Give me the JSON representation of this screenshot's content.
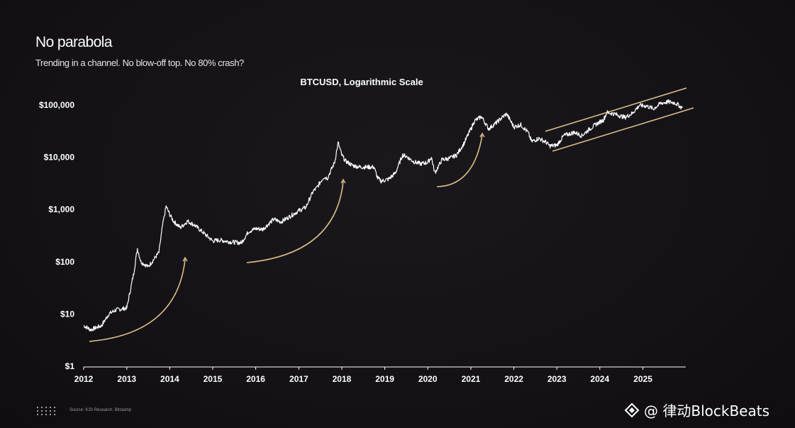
{
  "header": {
    "title": "No parabola",
    "subtitle": "Trending in a channel. No blow-off top. No 80% crash?"
  },
  "footer": {
    "source": "Source: K33 Research, Bitstamp",
    "watermark": "@ 律动BlockBeats"
  },
  "colors": {
    "background": "#141216",
    "price_line": "#ffffff",
    "annotation": "#d9bf86"
  },
  "chart_data": {
    "type": "line",
    "title": "BTCUSD, Logarithmic Scale",
    "xlabel": "",
    "ylabel": "",
    "y_scale": "log",
    "ylim": [
      1,
      200000
    ],
    "xlim": [
      "2012-01-01",
      "2025-12-31"
    ],
    "grid": false,
    "y_ticks": [
      {
        "value": 1,
        "label": "$1"
      },
      {
        "value": 10,
        "label": "$10"
      },
      {
        "value": 100,
        "label": "$100"
      },
      {
        "value": 1000,
        "label": "$1,000"
      },
      {
        "value": 10000,
        "label": "$10,000"
      },
      {
        "value": 100000,
        "label": "$100,000"
      }
    ],
    "x_ticks": [
      "2012",
      "2013",
      "2014",
      "2015",
      "2016",
      "2017",
      "2018",
      "2019",
      "2020",
      "2021",
      "2022",
      "2023",
      "2024",
      "2025"
    ],
    "series": [
      {
        "name": "",
        "x": [
          "2012-01",
          "2012-03",
          "2012-06",
          "2012-08",
          "2012-10",
          "2013-01",
          "2013-03",
          "2013-04",
          "2013-05",
          "2013-07",
          "2013-10",
          "2013-11",
          "2013-12",
          "2014-01",
          "2014-02",
          "2014-04",
          "2014-06",
          "2014-08",
          "2014-10",
          "2015-01",
          "2015-03",
          "2015-06",
          "2015-09",
          "2015-11",
          "2016-01",
          "2016-03",
          "2016-06",
          "2016-08",
          "2016-10",
          "2017-01",
          "2017-03",
          "2017-05",
          "2017-06",
          "2017-08",
          "2017-09",
          "2017-11",
          "2017-12",
          "2018-01",
          "2018-02",
          "2018-04",
          "2018-06",
          "2018-08",
          "2018-10",
          "2018-11",
          "2018-12",
          "2019-02",
          "2019-04",
          "2019-06",
          "2019-07",
          "2019-09",
          "2019-11",
          "2020-01",
          "2020-02",
          "2020-03",
          "2020-05",
          "2020-07",
          "2020-09",
          "2020-11",
          "2021-01",
          "2021-02",
          "2021-04",
          "2021-06",
          "2021-08",
          "2021-10",
          "2021-11",
          "2022-01",
          "2022-03",
          "2022-05",
          "2022-06",
          "2022-08",
          "2022-10",
          "2022-11",
          "2023-01",
          "2023-03",
          "2023-06",
          "2023-08",
          "2023-10",
          "2023-12",
          "2024-02",
          "2024-03",
          "2024-05",
          "2024-08",
          "2024-10",
          "2024-12",
          "2025-02",
          "2025-04",
          "2025-06",
          "2025-08",
          "2025-10",
          "2025-12"
        ],
        "y": [
          6,
          5,
          6,
          10,
          12,
          13,
          60,
          180,
          100,
          80,
          150,
          500,
          1150,
          800,
          600,
          450,
          600,
          500,
          380,
          250,
          260,
          240,
          230,
          380,
          430,
          420,
          650,
          580,
          700,
          950,
          1100,
          2200,
          2600,
          4200,
          4000,
          8000,
          19000,
          11000,
          8500,
          7000,
          6500,
          6500,
          6500,
          4000,
          3500,
          3800,
          5000,
          11000,
          10500,
          8300,
          7500,
          8000,
          10000,
          5000,
          9000,
          9500,
          11000,
          18000,
          35000,
          50000,
          60000,
          35000,
          45000,
          60000,
          68000,
          38000,
          42000,
          30000,
          20000,
          23000,
          19500,
          16500,
          17000,
          26000,
          30000,
          26000,
          34000,
          43000,
          52000,
          72000,
          68000,
          58000,
          69000,
          98000,
          96000,
          85000,
          108000,
          115000,
          110000,
          88000
        ]
      }
    ],
    "annotations": [
      {
        "type": "arrow",
        "label": ""
      },
      {
        "type": "arrow",
        "label": ""
      },
      {
        "type": "arrow",
        "label": ""
      },
      {
        "type": "arrow",
        "label": ""
      },
      {
        "type": "channel",
        "label": ""
      }
    ]
  }
}
